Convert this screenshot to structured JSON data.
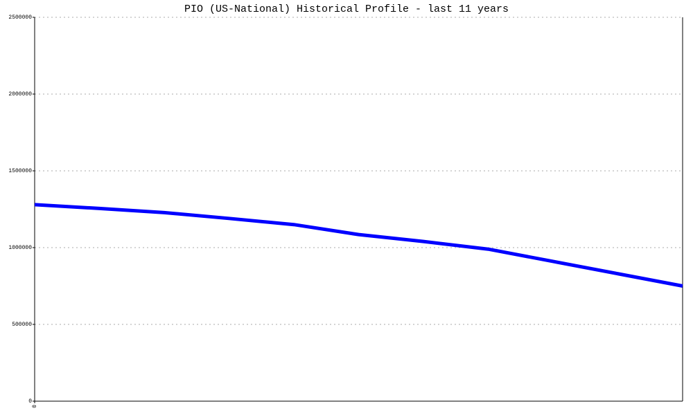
{
  "chart_data": {
    "type": "line",
    "title": "PIO (US-National) Historical Profile - last 11 years",
    "x": [
      0,
      1,
      2,
      3,
      4,
      5,
      6,
      7,
      8,
      9,
      10
    ],
    "series": [
      {
        "name": "PIO",
        "color": "#0000ff",
        "values": [
          1280000,
          1255000,
          1228000,
          1190000,
          1150000,
          1085000,
          1040000,
          990000,
          910000,
          830000,
          750000
        ]
      }
    ],
    "xlim": [
      0,
      10
    ],
    "xticks": [
      0
    ],
    "ylim": [
      0,
      2500000
    ],
    "yticks": [
      0,
      500000,
      1000000,
      1500000,
      2000000,
      2500000
    ],
    "grid": true
  }
}
